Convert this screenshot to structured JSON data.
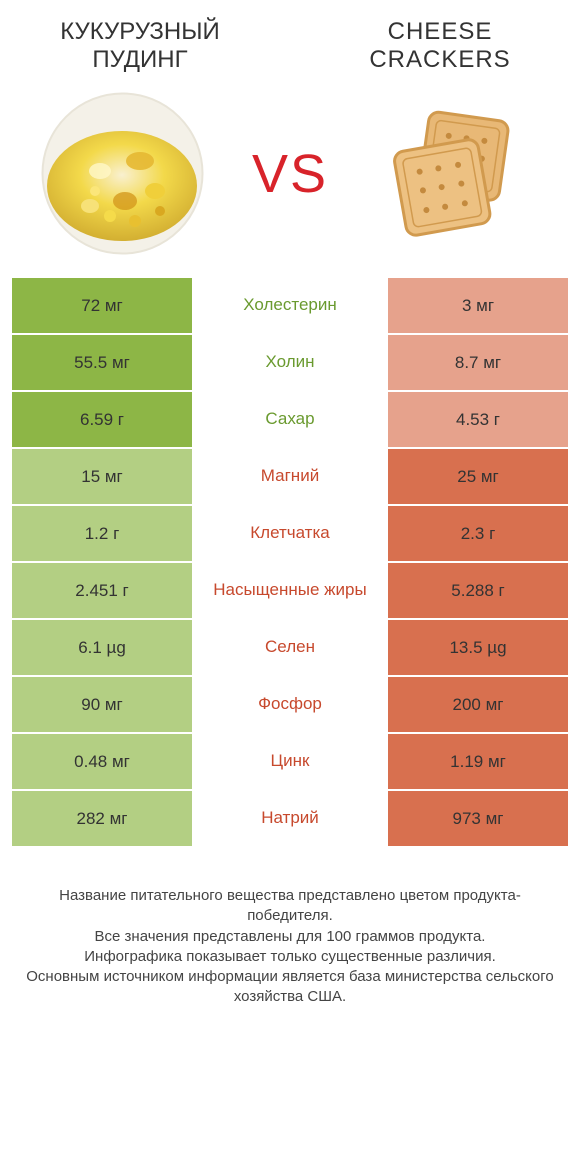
{
  "colors": {
    "green_win": "#8db646",
    "green_lose": "#b3cf83",
    "red_win": "#d8704f",
    "red_lose": "#e6a28c",
    "label_green": "#6a9a2f",
    "label_red": "#c7492d",
    "vs": "#d8232a",
    "bg": "#ffffff"
  },
  "header": {
    "left": "КУКУРУЗНЫЙ\nПУДИНГ",
    "right": "CHEESE\nCRACKERS",
    "vs": "VS"
  },
  "rows": [
    {
      "left": "72 мг",
      "label": "Холестерин",
      "right": "3 мг",
      "winner": "left"
    },
    {
      "left": "55.5 мг",
      "label": "Холин",
      "right": "8.7 мг",
      "winner": "left"
    },
    {
      "left": "6.59 г",
      "label": "Сахар",
      "right": "4.53 г",
      "winner": "left"
    },
    {
      "left": "15 мг",
      "label": "Магний",
      "right": "25 мг",
      "winner": "right"
    },
    {
      "left": "1.2 г",
      "label": "Клетчатка",
      "right": "2.3 г",
      "winner": "right"
    },
    {
      "left": "2.451 г",
      "label": "Насыщенные жиры",
      "right": "5.288 г",
      "winner": "right"
    },
    {
      "left": "6.1 µg",
      "label": "Селен",
      "right": "13.5 µg",
      "winner": "right"
    },
    {
      "left": "90 мг",
      "label": "Фосфор",
      "right": "200 мг",
      "winner": "right"
    },
    {
      "left": "0.48 мг",
      "label": "Цинк",
      "right": "1.19 мг",
      "winner": "right"
    },
    {
      "left": "282 мг",
      "label": "Натрий",
      "right": "973 мг",
      "winner": "right"
    }
  ],
  "footer": {
    "line1": "Название питательного вещества представлено цветом продукта-победителя.",
    "line2": "Все значения представлены для 100 граммов продукта.",
    "line3": "Инфографика показывает только существенные различия.",
    "line4": "Основным источником информации является база министерства сельского хозяйства США."
  }
}
